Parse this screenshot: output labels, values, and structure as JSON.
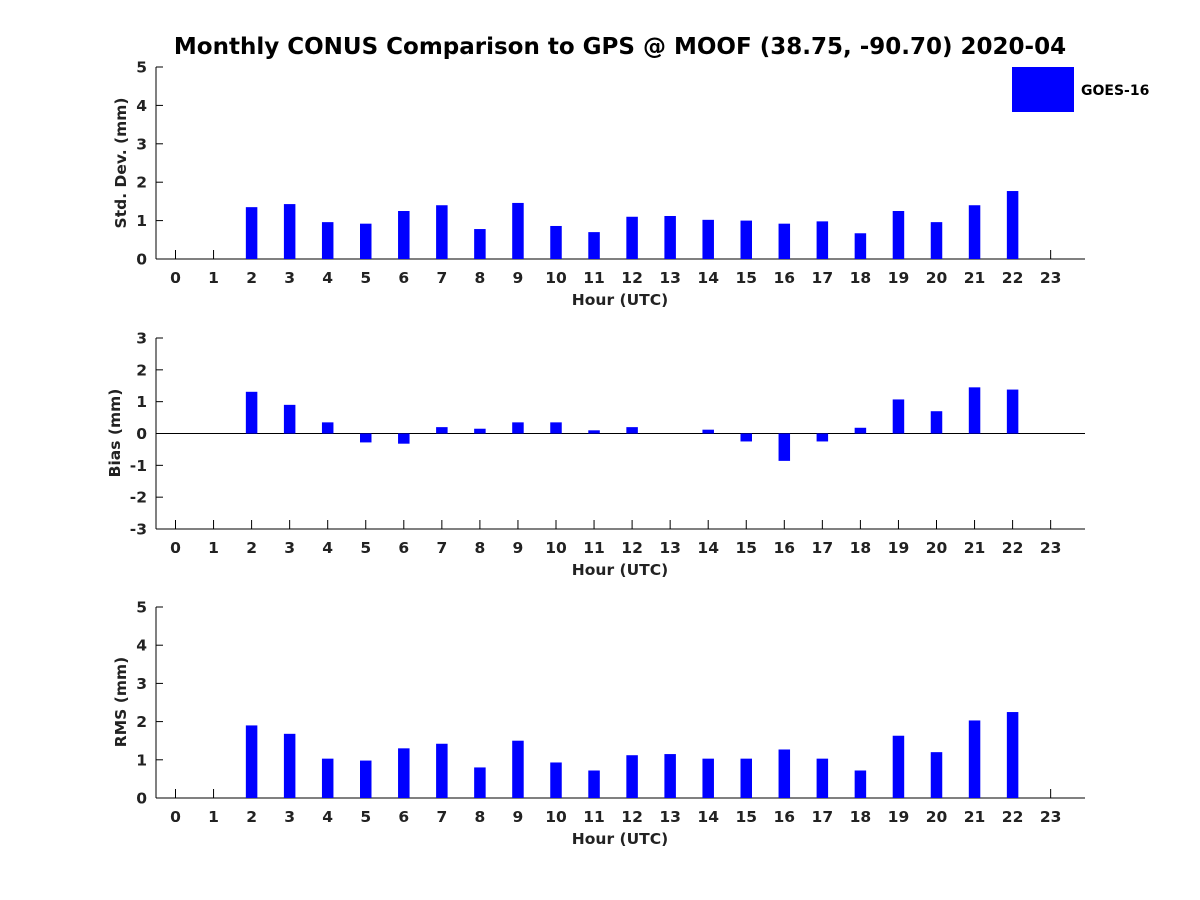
{
  "chart_data": {
    "title": "Monthly CONUS Comparison to GPS @ MOOF (38.75, -90.70) 2020-04",
    "bar_color": "#0000ff",
    "legend": {
      "label": "GOES-16",
      "position": "top-right"
    },
    "categories": [
      "0",
      "1",
      "2",
      "3",
      "4",
      "5",
      "6",
      "7",
      "8",
      "9",
      "10",
      "11",
      "12",
      "13",
      "14",
      "15",
      "16",
      "17",
      "18",
      "19",
      "20",
      "21",
      "22",
      "23"
    ],
    "panels": [
      {
        "type": "bar",
        "ylabel": "Std. Dev. (mm)",
        "xlabel": "Hour (UTC)",
        "ylim": [
          0,
          5
        ],
        "yticks": [
          "0",
          "1",
          "2",
          "3",
          "4",
          "5"
        ],
        "values": [
          null,
          null,
          1.35,
          1.43,
          0.96,
          0.92,
          1.25,
          1.4,
          0.78,
          1.46,
          0.86,
          0.7,
          1.1,
          1.12,
          1.02,
          1.0,
          0.92,
          0.98,
          0.67,
          1.25,
          0.96,
          1.4,
          1.77,
          null
        ]
      },
      {
        "type": "bar",
        "ylabel": "Bias (mm)",
        "xlabel": "Hour (UTC)",
        "ylim": [
          -3,
          3
        ],
        "yticks": [
          "-3",
          "-2",
          "-1",
          "0",
          "1",
          "2",
          "3"
        ],
        "values": [
          null,
          null,
          1.31,
          0.9,
          0.35,
          -0.28,
          -0.32,
          0.2,
          0.15,
          0.35,
          0.35,
          0.1,
          0.2,
          null,
          0.12,
          -0.25,
          -0.86,
          -0.25,
          0.18,
          1.07,
          0.7,
          1.45,
          1.38,
          null
        ]
      },
      {
        "type": "bar",
        "ylabel": "RMS (mm)",
        "xlabel": "Hour (UTC)",
        "ylim": [
          0,
          5
        ],
        "yticks": [
          "0",
          "1",
          "2",
          "3",
          "4",
          "5"
        ],
        "values": [
          null,
          null,
          1.9,
          1.68,
          1.03,
          0.98,
          1.3,
          1.42,
          0.8,
          1.5,
          0.93,
          0.72,
          1.12,
          1.15,
          1.03,
          1.03,
          1.27,
          1.03,
          0.72,
          1.63,
          1.2,
          2.03,
          2.25,
          null
        ]
      }
    ]
  }
}
